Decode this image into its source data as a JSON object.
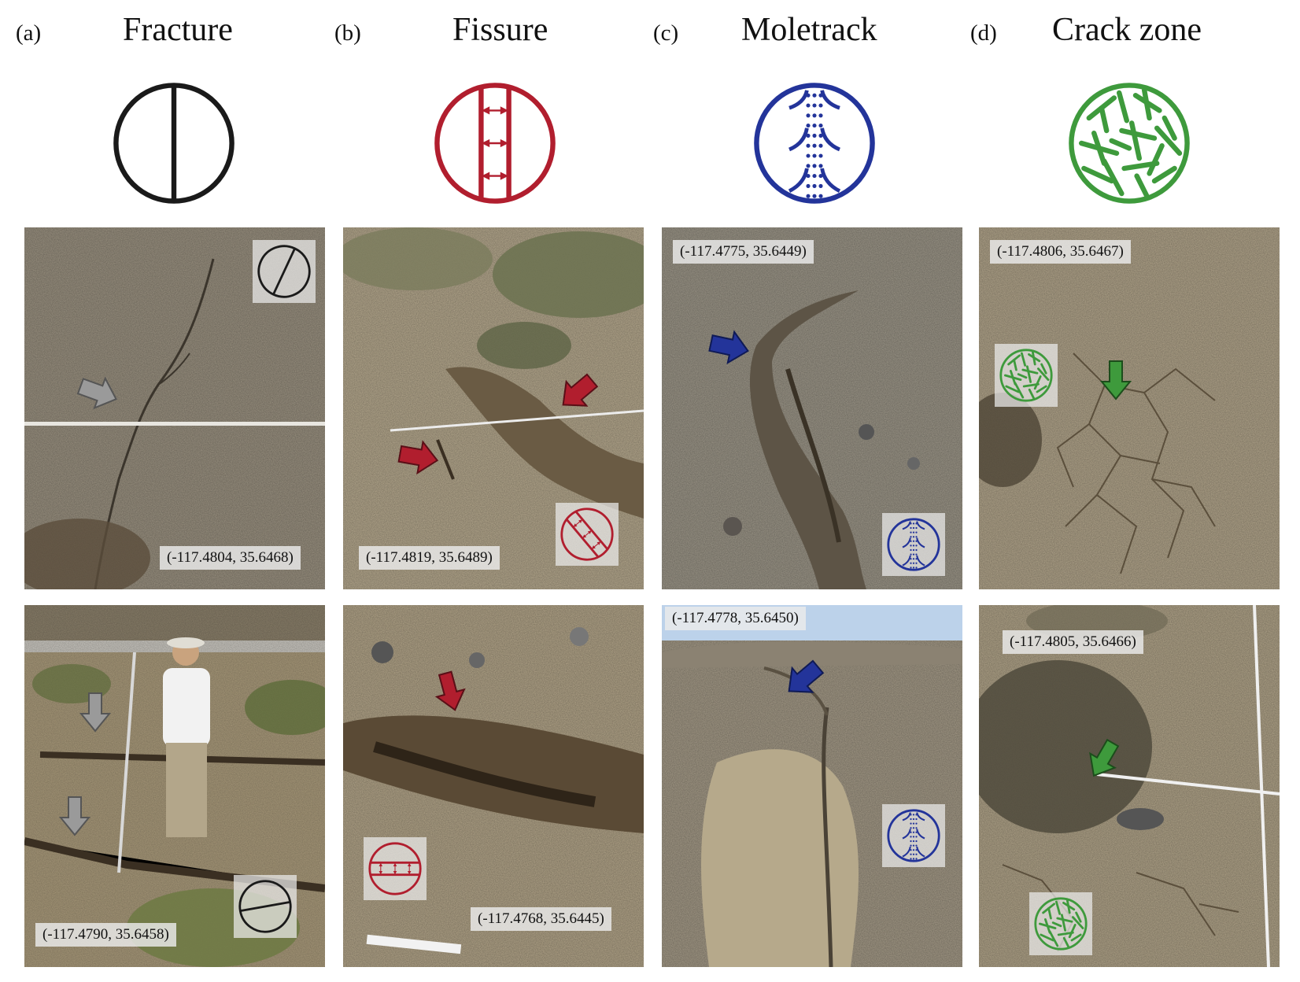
{
  "colors": {
    "fracture": "#1a1a1a",
    "fissure": "#b11e2e",
    "moletrack": "#23349a",
    "crack_zone": "#3e9a3c",
    "photo_arrow_gray": "#9a9a9a"
  },
  "columns": [
    {
      "letter": "(a)",
      "title": "Fracture",
      "symbol": "fracture-icon",
      "photos": [
        {
          "coords": "(-117.4804, 35.6468)",
          "badge": "fracture-tilted-icon"
        },
        {
          "coords": "(-117.4790, 35.6458)",
          "badge": "fracture-horizontal-icon"
        }
      ]
    },
    {
      "letter": "(b)",
      "title": "Fissure",
      "symbol": "fissure-icon",
      "photos": [
        {
          "coords": "(-117.4819, 35.6489)",
          "badge": "fissure-tilted-icon"
        },
        {
          "coords": "(-117.4768, 35.6445)",
          "badge": "fissure-horizontal-icon"
        }
      ]
    },
    {
      "letter": "(c)",
      "title": "Moletrack",
      "symbol": "moletrack-icon",
      "photos": [
        {
          "coords": "(-117.4775, 35.6449)",
          "badge": "moletrack-icon"
        },
        {
          "coords": "(-117.4778, 35.6450)",
          "badge": "moletrack-icon"
        }
      ]
    },
    {
      "letter": "(d)",
      "title": "Crack zone",
      "symbol": "crack-zone-icon",
      "photos": [
        {
          "coords": "(-117.4806, 35.6467)",
          "badge": "crack-zone-icon"
        },
        {
          "coords": "(-117.4805, 35.6466)",
          "badge": "crack-zone-icon"
        }
      ]
    }
  ]
}
